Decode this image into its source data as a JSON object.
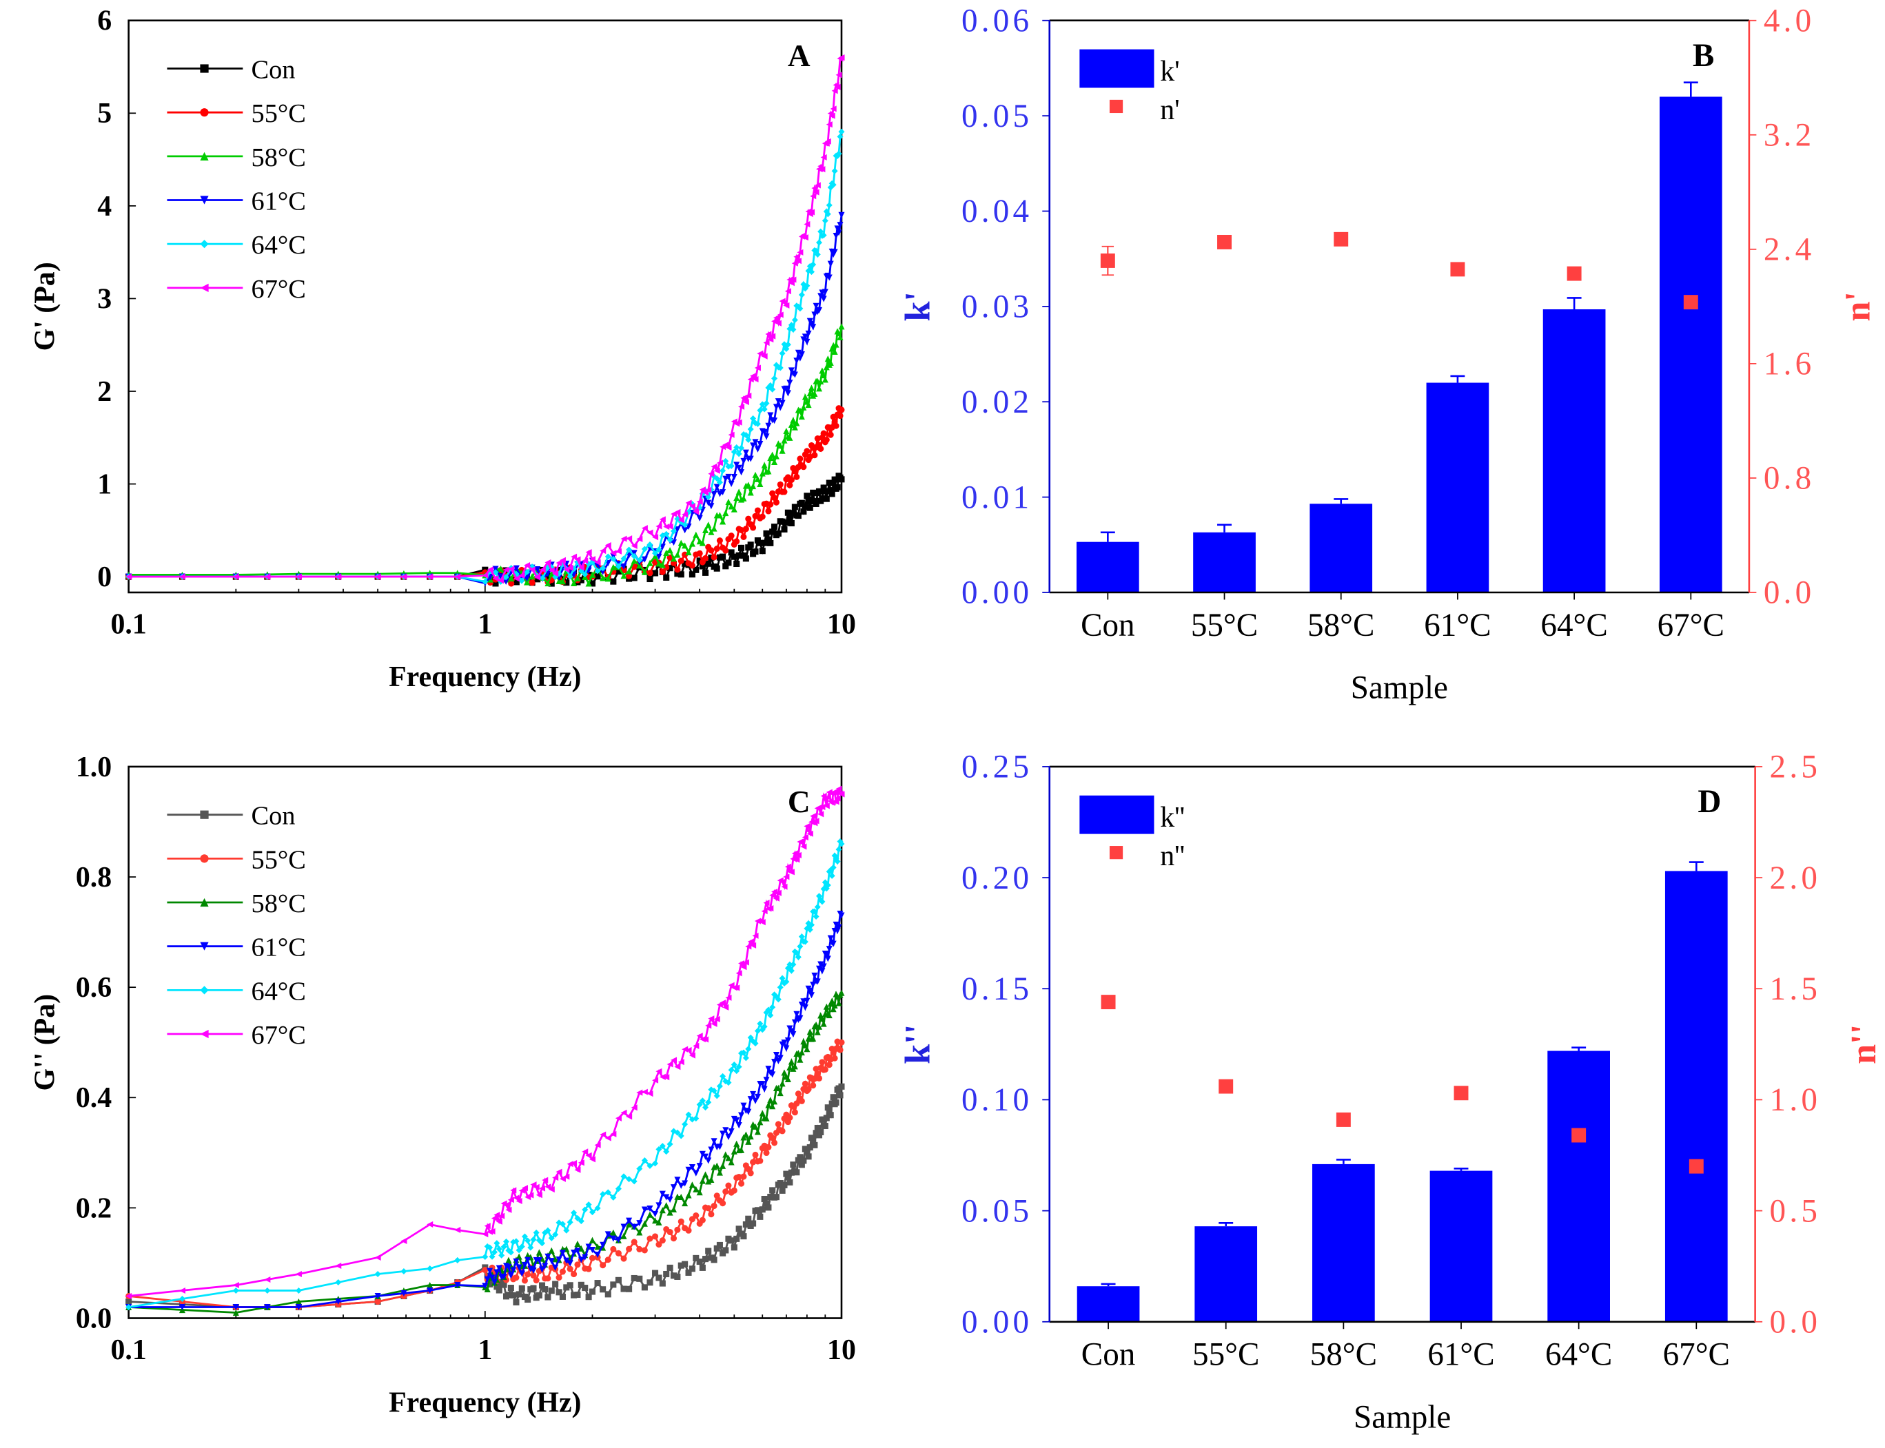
{
  "chart_data": [
    {
      "panel": "A",
      "type": "line",
      "title": "A",
      "xlabel": "Frequency (Hz)",
      "ylabel": "G' (Pa)",
      "xscale": "log",
      "xlim": [
        0.1,
        10
      ],
      "ylim": [
        -0.17,
        6
      ],
      "xticks": [
        0.1,
        1,
        10
      ],
      "xtick_labels": [
        "0.1",
        "1",
        "10"
      ],
      "yticks": [
        0,
        1,
        2,
        3,
        4,
        5,
        6
      ],
      "legend": "top-left",
      "x": [
        0.1,
        0.2,
        0.3,
        0.5,
        0.7,
        1,
        1.5,
        2,
        3,
        4,
        5,
        6,
        7,
        8,
        9,
        10
      ],
      "series": [
        {
          "name": "Con",
          "color": "#000000",
          "marker": "square",
          "values": [
            0,
            0,
            0,
            0,
            0,
            0,
            0,
            0,
            0.05,
            0.1,
            0.2,
            0.35,
            0.6,
            0.8,
            0.9,
            1.05
          ]
        },
        {
          "name": "55°C",
          "color": "#ff0000",
          "marker": "circle",
          "values": [
            0,
            0,
            0,
            0,
            0,
            0,
            0,
            0.05,
            0.1,
            0.2,
            0.4,
            0.7,
            1.0,
            1.3,
            1.5,
            1.8
          ]
        },
        {
          "name": "58°C",
          "color": "#00cc00",
          "marker": "triangle-up",
          "values": [
            0.02,
            0.02,
            0.03,
            0.03,
            0.04,
            0.04,
            0,
            0,
            0.15,
            0.4,
            0.8,
            1.1,
            1.5,
            1.9,
            2.2,
            2.7
          ]
        },
        {
          "name": "61°C",
          "color": "#0000ff",
          "marker": "triangle-down",
          "values": [
            0,
            0,
            0,
            0,
            0,
            0,
            0.05,
            0.1,
            0.25,
            0.7,
            1.1,
            1.5,
            2.0,
            2.6,
            3.1,
            3.9
          ]
        },
        {
          "name": "64°C",
          "color": "#00e5ff",
          "marker": "diamond",
          "values": [
            0,
            0,
            0,
            0,
            0,
            0,
            0.05,
            0.1,
            0.3,
            0.8,
            1.3,
            1.8,
            2.5,
            3.2,
            3.8,
            4.8
          ]
        },
        {
          "name": "67°C",
          "color": "#ff00ff",
          "marker": "triangle-left",
          "values": [
            0,
            0,
            0,
            0,
            0,
            0,
            0.08,
            0.2,
            0.5,
            0.8,
            1.6,
            2.4,
            3.0,
            3.8,
            4.6,
            5.6
          ]
        }
      ]
    },
    {
      "panel": "B",
      "type": "bar",
      "title": "B",
      "xlabel": "Sample",
      "ylabel": "k'",
      "y2label": "n'",
      "categories": [
        "Con",
        "55°C",
        "58°C",
        "61°C",
        "64°C",
        "67°C"
      ],
      "ylim": [
        0,
        0.06
      ],
      "yticks": [
        "0.00",
        "0.01",
        "0.02",
        "0.03",
        "0.04",
        "0.05",
        "0.06"
      ],
      "y2lim": [
        0,
        4.0
      ],
      "y2ticks": [
        "0.0",
        "0.8",
        "1.6",
        "2.4",
        "3.2",
        "4.0"
      ],
      "legend": "top-left",
      "series": [
        {
          "name": "k'",
          "color": "#0000ff",
          "values": [
            0.0053,
            0.0063,
            0.0093,
            0.022,
            0.0297,
            0.052
          ],
          "errors": [
            0.001,
            0.0008,
            0.0005,
            0.0007,
            0.0012,
            0.0015
          ]
        },
        {
          "name": "n'",
          "color": "#ff4040",
          "axis": "right",
          "values": [
            2.32,
            2.45,
            2.47,
            2.26,
            2.23,
            2.03
          ],
          "errors": [
            0.1,
            0.04,
            0,
            0,
            0,
            0
          ]
        }
      ]
    },
    {
      "panel": "C",
      "type": "line",
      "title": "C",
      "xlabel": "Frequency (Hz)",
      "ylabel": "G'' (Pa)",
      "xscale": "log",
      "xlim": [
        0.1,
        10
      ],
      "ylim": [
        0,
        1.0
      ],
      "xticks": [
        0.1,
        1,
        10
      ],
      "xtick_labels": [
        "0.1",
        "1",
        "10"
      ],
      "yticks": [
        "0.0",
        "0.2",
        "0.4",
        "0.6",
        "0.8",
        "1.0"
      ],
      "legend": "top-left",
      "x": [
        0.1,
        0.2,
        0.3,
        0.5,
        0.7,
        1,
        1.2,
        1.5,
        2,
        3,
        4,
        5,
        6,
        7,
        8,
        9,
        10
      ],
      "series": [
        {
          "name": "Con",
          "color": "#555555",
          "marker": "square",
          "values": [
            0.03,
            0.02,
            0.02,
            0.03,
            0.05,
            0.08,
            0.04,
            0.05,
            0.05,
            0.07,
            0.1,
            0.14,
            0.2,
            0.25,
            0.3,
            0.36,
            0.42
          ]
        },
        {
          "name": "55°C",
          "color": "#ff3b30",
          "marker": "circle",
          "values": [
            0.04,
            0.02,
            0.02,
            0.03,
            0.05,
            0.08,
            0.08,
            0.08,
            0.1,
            0.14,
            0.18,
            0.24,
            0.3,
            0.36,
            0.42,
            0.46,
            0.5
          ]
        },
        {
          "name": "58°C",
          "color": "#008800",
          "marker": "triangle-up",
          "values": [
            0.02,
            0.01,
            0.03,
            0.04,
            0.06,
            0.06,
            0.1,
            0.11,
            0.13,
            0.18,
            0.24,
            0.3,
            0.36,
            0.44,
            0.5,
            0.55,
            0.59
          ]
        },
        {
          "name": "61°C",
          "color": "#0000ff",
          "marker": "triangle-down",
          "values": [
            0.02,
            0.02,
            0.02,
            0.04,
            0.05,
            0.07,
            0.09,
            0.1,
            0.12,
            0.2,
            0.28,
            0.35,
            0.42,
            0.5,
            0.58,
            0.65,
            0.73
          ]
        },
        {
          "name": "64°C",
          "color": "#00e5ff",
          "marker": "diamond",
          "values": [
            0.02,
            0.05,
            0.05,
            0.08,
            0.09,
            0.12,
            0.13,
            0.15,
            0.2,
            0.29,
            0.38,
            0.45,
            0.53,
            0.62,
            0.7,
            0.78,
            0.86
          ]
        },
        {
          "name": "67°C",
          "color": "#ff00ff",
          "marker": "triangle-left",
          "values": [
            0.04,
            0.06,
            0.08,
            0.11,
            0.17,
            0.15,
            0.22,
            0.24,
            0.3,
            0.43,
            0.5,
            0.6,
            0.73,
            0.8,
            0.88,
            0.94,
            0.95
          ]
        }
      ]
    },
    {
      "panel": "D",
      "type": "bar",
      "title": "D",
      "xlabel": "Sample",
      "ylabel": "k''",
      "y2label": "n''",
      "categories": [
        "Con",
        "55°C",
        "58°C",
        "61°C",
        "64°C",
        "67°C"
      ],
      "ylim": [
        0,
        0.25
      ],
      "yticks": [
        "0.00",
        "0.05",
        "0.10",
        "0.15",
        "0.20",
        "0.25"
      ],
      "y2lim": [
        0,
        2.5
      ],
      "y2ticks": [
        "0.0",
        "0.5",
        "1.0",
        "1.5",
        "2.0",
        "2.5"
      ],
      "legend": "top-left",
      "series": [
        {
          "name": "k''",
          "color": "#0000ff",
          "values": [
            0.016,
            0.043,
            0.071,
            0.068,
            0.122,
            0.203
          ],
          "errors": [
            0.001,
            0.0015,
            0.002,
            0.001,
            0.0015,
            0.004
          ]
        },
        {
          "name": "n''",
          "color": "#ff4040",
          "axis": "right",
          "values": [
            1.44,
            1.06,
            0.91,
            1.03,
            0.84,
            0.7
          ],
          "errors": [
            0,
            0,
            0,
            0,
            0,
            0
          ]
        }
      ]
    }
  ]
}
